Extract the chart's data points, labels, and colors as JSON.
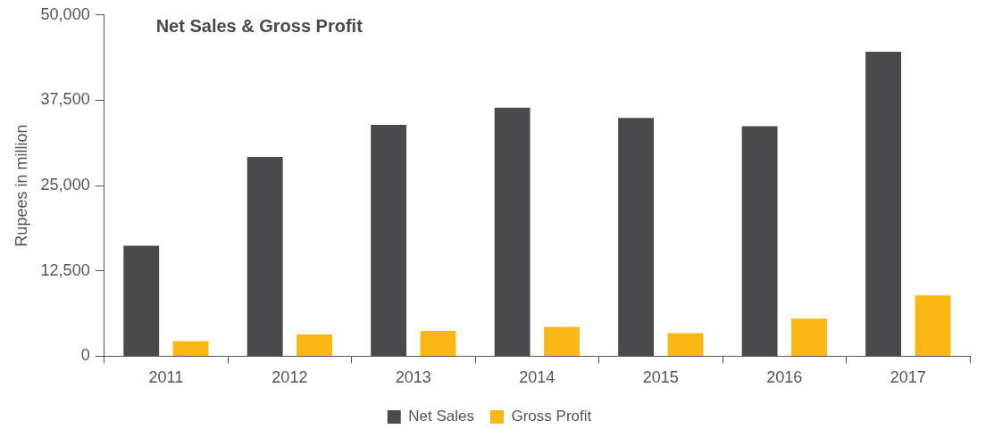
{
  "chart_data": {
    "type": "bar",
    "title": "Net Sales & Gross Profit",
    "ylabel": "Rupees in million",
    "categories": [
      "2011",
      "2012",
      "2013",
      "2014",
      "2015",
      "2016",
      "2017"
    ],
    "series": [
      {
        "name": "Net Sales",
        "color": "#4a4a4c",
        "values": [
          16200,
          29200,
          33900,
          36400,
          34900,
          33700,
          44600
        ]
      },
      {
        "name": "Gross Profit",
        "color": "#fbb714",
        "values": [
          2200,
          3200,
          3700,
          4300,
          3400,
          5500,
          8900
        ]
      }
    ],
    "ylim": [
      0,
      50000
    ],
    "yticks": [
      {
        "value": 0,
        "label": "0"
      },
      {
        "value": 12500,
        "label": "12,500"
      },
      {
        "value": 25000,
        "label": "25,000"
      },
      {
        "value": 37500,
        "label": "37,500"
      },
      {
        "value": 50000,
        "label": "50,000"
      }
    ],
    "grid": false,
    "legend": "bottom"
  }
}
